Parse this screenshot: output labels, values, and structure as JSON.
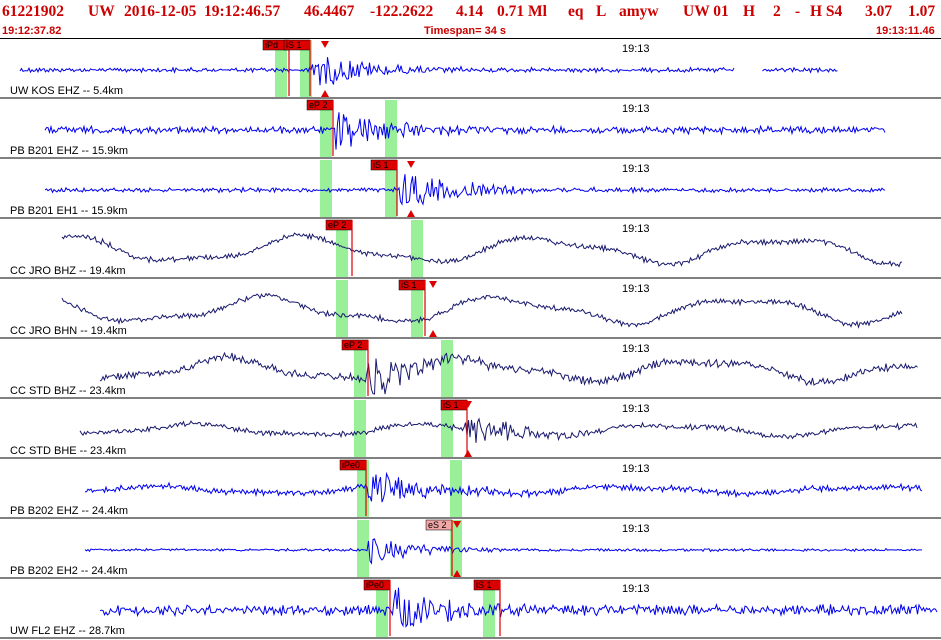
{
  "header": {
    "event_id": "61221902",
    "network": "UW",
    "date": "2016-12-05",
    "time": "19:12:46.57",
    "lat": "46.4467",
    "lon": "-122.2622",
    "depth": "4.14",
    "magnitude": "0.71 Ml",
    "event_type": "eq",
    "flags": "L",
    "author": "amyw",
    "agency_code": "UW 01",
    "quality": "H",
    "count": "2",
    "dash": "-",
    "status": "H S4",
    "rms": "3.07",
    "erh": "1.07",
    "start_time": "19:12:37.82",
    "timespan": "Timespan=  34 s",
    "end_time": "19:13:11.46"
  },
  "minute_label": "19:13",
  "colors": {
    "header_text": "#cc0000",
    "trace_blue": "#0000ee",
    "trace_navy": "#1a1a6e",
    "pick_box": "#dd0000",
    "pick_box_light": "#f2a6a6",
    "window_green": "#99f099"
  },
  "traces": [
    {
      "label": "UW KOS EHZ -- 5.4km",
      "style": "blue",
      "amp": 2,
      "noise": 1.5,
      "start": 20,
      "end": 838,
      "gaps": [
        [
          735,
          762
        ]
      ],
      "low": 0,
      "burst": 310,
      "burst_amp": 20,
      "p_win": 275,
      "s_win": 300,
      "picks": [
        {
          "text": "iPd",
          "x": 263,
          "light": false
        },
        {
          "text": "iS 1",
          "x": 284,
          "light": false
        }
      ],
      "arrow": 325
    },
    {
      "label": "PB B201 EHZ -- 15.9km",
      "style": "blue",
      "amp": 3,
      "noise": 2.5,
      "start": 45,
      "end": 885,
      "gaps": [],
      "low": 0,
      "burst": 335,
      "burst_amp": 22,
      "p_win": 320,
      "s_win": 385,
      "picks": [
        {
          "text": "eP 2",
          "x": 307,
          "light": false
        }
      ],
      "arrow": null
    },
    {
      "label": "PB B201 EH1 -- 15.9km",
      "style": "blue",
      "amp": 2,
      "noise": 1.5,
      "start": 45,
      "end": 885,
      "gaps": [],
      "low": 0,
      "burst": 398,
      "burst_amp": 22,
      "p_win": 320,
      "s_win": 385,
      "picks": [
        {
          "text": "iS 1",
          "x": 371,
          "light": false
        }
      ],
      "arrow": 411
    },
    {
      "label": "CC JRO BHZ -- 19.4km",
      "style": "navy",
      "amp": 2,
      "noise": 2,
      "start": 62,
      "end": 902,
      "gaps": [],
      "low": 14,
      "burst": 0,
      "burst_amp": 0,
      "p_win": 336,
      "s_win": 411,
      "picks": [
        {
          "text": "eP 2",
          "x": 326,
          "light": false
        }
      ],
      "arrow": null
    },
    {
      "label": "CC JRO BHN -- 19.4km",
      "style": "navy",
      "amp": 2,
      "noise": 2,
      "start": 62,
      "end": 902,
      "gaps": [],
      "low": 14,
      "burst": 0,
      "burst_amp": 0,
      "p_win": 336,
      "s_win": 411,
      "picks": [
        {
          "text": "iS 1",
          "x": 399,
          "light": false
        }
      ],
      "arrow": 433
    },
    {
      "label": "CC STD BHZ -- 23.4km",
      "style": "navy",
      "amp": 3,
      "noise": 3,
      "start": 100,
      "end": 918,
      "gaps": [],
      "low": 12,
      "burst": 365,
      "burst_amp": 20,
      "p_win": 354,
      "s_win": 441,
      "picks": [
        {
          "text": "eP 2",
          "x": 342,
          "light": false
        }
      ],
      "arrow": null
    },
    {
      "label": "CC STD BHE -- 23.4km",
      "style": "navy",
      "amp": 2,
      "noise": 2,
      "start": 80,
      "end": 918,
      "gaps": [],
      "low": 6,
      "burst": 465,
      "burst_amp": 18,
      "p_win": 354,
      "s_win": 441,
      "picks": [
        {
          "text": "iS 1",
          "x": 441,
          "light": false
        }
      ],
      "arrow": 468
    },
    {
      "label": "PB B202 EHZ -- 24.4km",
      "style": "blue",
      "amp": 3,
      "noise": 2,
      "start": 85,
      "end": 922,
      "gaps": [],
      "low": 4,
      "burst": 368,
      "burst_amp": 20,
      "p_win": 357,
      "s_win": 450,
      "picks": [
        {
          "text": "iPe0",
          "x": 340,
          "light": false
        }
      ],
      "arrow": null
    },
    {
      "label": "PB B202 EH2 -- 24.4km",
      "style": "blue",
      "amp": 1,
      "noise": 1,
      "start": 85,
      "end": 922,
      "gaps": [],
      "low": 0,
      "burst": 368,
      "burst_amp": 14,
      "p_win": 357,
      "s_win": 450,
      "picks": [
        {
          "text": "eS 2",
          "x": 426,
          "light": true
        }
      ],
      "arrow": 457
    },
    {
      "label": "UW FL2 EHZ -- 28.7km",
      "style": "blue",
      "amp": 4,
      "noise": 4,
      "start": 100,
      "end": 938,
      "gaps": [],
      "low": 0,
      "burst": 393,
      "burst_amp": 22,
      "p_win": 376,
      "s_win": 483,
      "picks": [
        {
          "text": "iPe0",
          "x": 364,
          "light": false
        },
        {
          "text": "iS 1",
          "x": 474,
          "light": false
        }
      ],
      "arrow": null
    }
  ]
}
